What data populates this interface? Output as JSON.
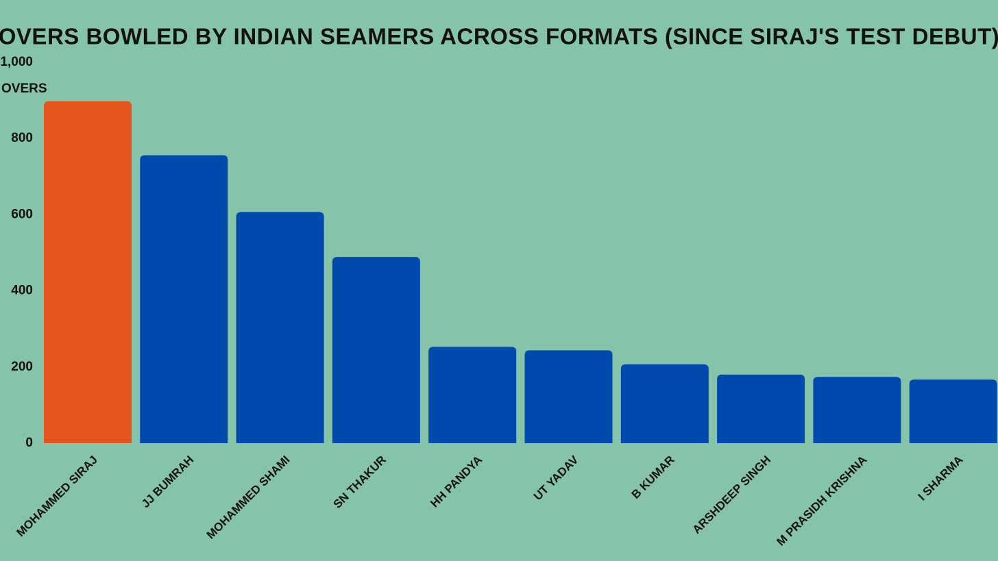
{
  "chart_data": {
    "type": "bar",
    "title": "OVERS BOWLED BY INDIAN SEAMERS ACROSS FORMATS (SINCE SIRAJ'S TEST DEBUT)",
    "y_label": "OVERS",
    "categories": [
      "MOHAMMED SIRAJ",
      "JJ BUMRAH",
      "MOHAMMED SHAMI",
      "SN THAKUR",
      "HH PANDYA",
      "UT YADAV",
      "B KUMAR",
      "ARSHDEEP SINGH",
      "M PRASIDH KRISHNA",
      "I SHARMA"
    ],
    "values": [
      898,
      756,
      607,
      489,
      253,
      244,
      207,
      180,
      174,
      167
    ],
    "colors": [
      "#e5561e",
      "#004aad",
      "#004aad",
      "#004aad",
      "#004aad",
      "#004aad",
      "#004aad",
      "#004aad",
      "#004aad",
      "#004aad"
    ],
    "ylim": [
      0,
      1000
    ],
    "yticks": [
      0,
      200,
      400,
      600,
      800,
      {
        "value": 1000,
        "label": "1,000"
      }
    ],
    "grid": false
  }
}
